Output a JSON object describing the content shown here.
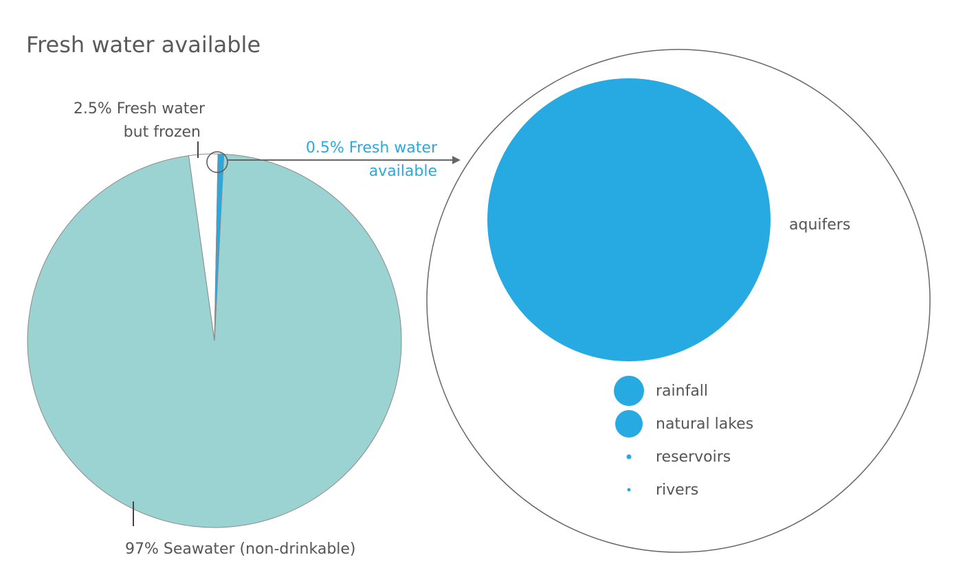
{
  "chart_data": {
    "type": "pie",
    "title": "Fresh water available",
    "slices": [
      {
        "label_lines": [
          "97% Seawater (non-drinkable)"
        ],
        "value": 97,
        "color": "#9ad3d2"
      },
      {
        "label_lines": [
          "2.5% Fresh water",
          "but frozen"
        ],
        "value": 2.5,
        "color": "#ffffff"
      },
      {
        "label_lines": [
          "0.5% Fresh water",
          "available"
        ],
        "value": 0.5,
        "color": "#27aae1"
      }
    ],
    "breakdown": {
      "description_color": "#27aae1",
      "sources": [
        {
          "label": "aquifers"
        },
        {
          "label": "rainfall"
        },
        {
          "label": "natural lakes"
        },
        {
          "label": "reservoirs"
        },
        {
          "label": "rivers"
        }
      ]
    }
  }
}
